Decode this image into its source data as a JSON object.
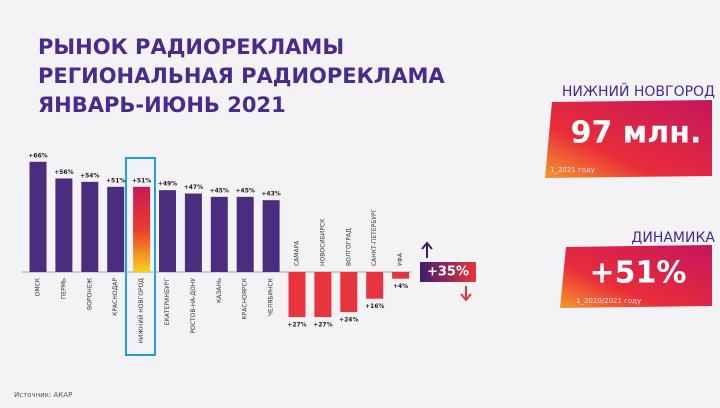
{
  "header": {
    "title_lines": [
      "РЫНОК РАДИОРЕКЛАМЫ",
      "РЕГИОНАЛЬНАЯ РАДИОРЕКЛАМА",
      "ЯНВАРЬ-ИЮНЬ 2021"
    ]
  },
  "chart_data": {
    "type": "bar",
    "categories": [
      "ОМСК",
      "ПЕРМЬ",
      "ВОРОНЕЖ",
      "КРАСНОДАР",
      "НИЖНИЙ НОВГОРОД",
      "ЕКАТЕРИНБУРГ",
      "РОСТОВ-НА-ДОНУ",
      "КАЗАНЬ",
      "КРАСНОЯРСК",
      "ЧЕЛЯБИНСК",
      "САМАРА",
      "НОВОСИБИРСК",
      "ВОЛГОГРАД",
      "САНКТ-ПЕТЕРБУРГ",
      "УФА"
    ],
    "series": [
      {
        "color": "#4b2d7f",
        "direction": "up",
        "values": [
          66,
          56,
          54,
          51,
          51,
          49,
          47,
          45,
          45,
          43,
          null,
          null,
          null,
          null,
          null
        ],
        "value_labels": [
          "+66%",
          "+56%",
          "+54%",
          "+51%",
          "+51%",
          "+49%",
          "+47%",
          "+45%",
          "+45%",
          "+43%",
          null,
          null,
          null,
          null,
          null
        ]
      },
      {
        "color": "#e8343e",
        "direction": "down",
        "values": [
          null,
          null,
          null,
          null,
          null,
          null,
          null,
          null,
          null,
          null,
          27,
          27,
          24,
          16,
          4
        ],
        "value_labels": [
          null,
          null,
          null,
          null,
          null,
          null,
          null,
          null,
          null,
          null,
          "+27%",
          "+27%",
          "+24%",
          "+16%",
          "+4%"
        ]
      }
    ],
    "annotation": "+35%"
  },
  "panels": [
    {
      "title": "НИЖНИЙ НОВГОРОД",
      "value": "97 млн.",
      "note": "1_2021 году"
    },
    {
      "title": "ДИНАМИКА",
      "value": "+51%",
      "note": "1_2020/2021 году"
    }
  ],
  "footer": {
    "source": "Источник: АКАР"
  }
}
